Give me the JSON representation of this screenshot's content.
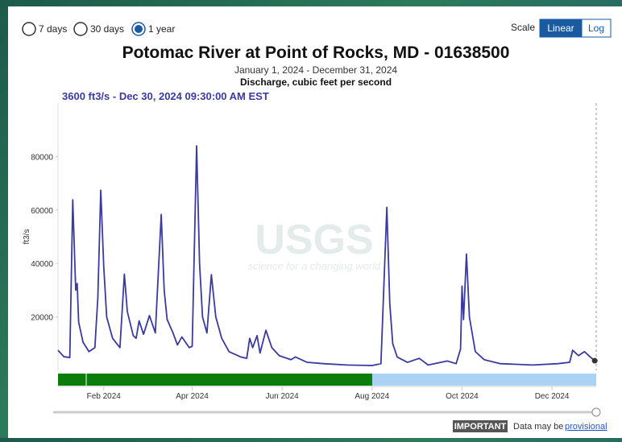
{
  "ui": {
    "range_options": [
      "7 days",
      "30 days",
      "1 year"
    ],
    "selected_range": 2,
    "scale_label": "Scale",
    "scale_options": [
      "Linear",
      "Log"
    ],
    "selected_scale": 0,
    "tooltip": "3600 ft3/s - Dec 30, 2024 09:30:00 AM EST",
    "watermark": "USGS",
    "watermark_tagline": "science for a changing world",
    "notice_badge": "IMPORTANT",
    "notice_text": "Data may be",
    "notice_link": "provisional"
  },
  "chart_data": {
    "type": "line",
    "title": "Potomac River at Point of Rocks, MD - 01638500",
    "subtitle": "January 1, 2024 - December 31, 2024",
    "parameter": "Discharge, cubic feet per second",
    "y_label": "ft3/s",
    "x": [
      "2024-01-01",
      "2024-01-05",
      "2024-01-09",
      "2024-01-11",
      "2024-01-13",
      "2024-01-14",
      "2024-01-15",
      "2024-01-18",
      "2024-01-22",
      "2024-01-26",
      "2024-01-28",
      "2024-01-30",
      "2024-02-01",
      "2024-02-03",
      "2024-02-07",
      "2024-02-12",
      "2024-02-15",
      "2024-02-17",
      "2024-02-21",
      "2024-02-23",
      "2024-02-25",
      "2024-02-28",
      "2024-03-03",
      "2024-03-07",
      "2024-03-11",
      "2024-03-13",
      "2024-03-15",
      "2024-03-19",
      "2024-03-22",
      "2024-03-25",
      "2024-03-30",
      "2024-04-01",
      "2024-04-04",
      "2024-04-06",
      "2024-04-08",
      "2024-04-11",
      "2024-04-14",
      "2024-04-17",
      "2024-04-21",
      "2024-04-26",
      "2024-05-04",
      "2024-05-08",
      "2024-05-10",
      "2024-05-12",
      "2024-05-15",
      "2024-05-17",
      "2024-05-21",
      "2024-05-25",
      "2024-05-30",
      "2024-06-07",
      "2024-06-10",
      "2024-06-18",
      "2024-06-29",
      "2024-07-15",
      "2024-08-01",
      "2024-08-07",
      "2024-08-11",
      "2024-08-13",
      "2024-08-15",
      "2024-08-18",
      "2024-08-25",
      "2024-09-02",
      "2024-09-08",
      "2024-09-21",
      "2024-09-27",
      "2024-09-30",
      "2024-10-01",
      "2024-10-02",
      "2024-10-04",
      "2024-10-06",
      "2024-10-10",
      "2024-10-16",
      "2024-10-27",
      "2024-11-18",
      "2024-12-05",
      "2024-12-13",
      "2024-12-15",
      "2024-12-19",
      "2024-12-23",
      "2024-12-27",
      "2024-12-30"
    ],
    "series": [
      {
        "name": "Discharge",
        "color": "#3a3aa0",
        "values": [
          7500,
          5100,
          4800,
          63800,
          30000,
          32500,
          18000,
          10500,
          7000,
          8500,
          27000,
          67400,
          39000,
          20000,
          12000,
          8500,
          36000,
          22000,
          13000,
          12000,
          18500,
          13500,
          20500,
          14000,
          58300,
          30000,
          19000,
          14000,
          9500,
          12500,
          8500,
          9000,
          84000,
          40000,
          20000,
          14000,
          35800,
          20000,
          12000,
          7000,
          5000,
          4500,
          12000,
          8500,
          13000,
          6500,
          15000,
          8500,
          5500,
          4000,
          5000,
          3000,
          2500,
          2000,
          1800,
          2500,
          61000,
          25000,
          10000,
          5000,
          3000,
          4500,
          2000,
          3500,
          2500,
          8000,
          31500,
          19000,
          43500,
          20000,
          7000,
          4000,
          2500,
          2000,
          2500,
          3000,
          7500,
          5500,
          7000,
          5000,
          3600
        ]
      }
    ],
    "xlim": [
      "2024-01-01",
      "2024-12-31"
    ],
    "xticks": [
      {
        "value": "2024-02-01",
        "label": "Feb 2024"
      },
      {
        "value": "2024-04-01",
        "label": "Apr 2024"
      },
      {
        "value": "2024-06-01",
        "label": "Jun 2024"
      },
      {
        "value": "2024-08-01",
        "label": "Aug 2024"
      },
      {
        "value": "2024-10-01",
        "label": "Oct 2024"
      },
      {
        "value": "2024-12-01",
        "label": "Dec 2024"
      }
    ],
    "ylim": [
      0,
      100000
    ],
    "yticks": [
      20000,
      40000,
      60000,
      80000
    ],
    "grid": false
  }
}
